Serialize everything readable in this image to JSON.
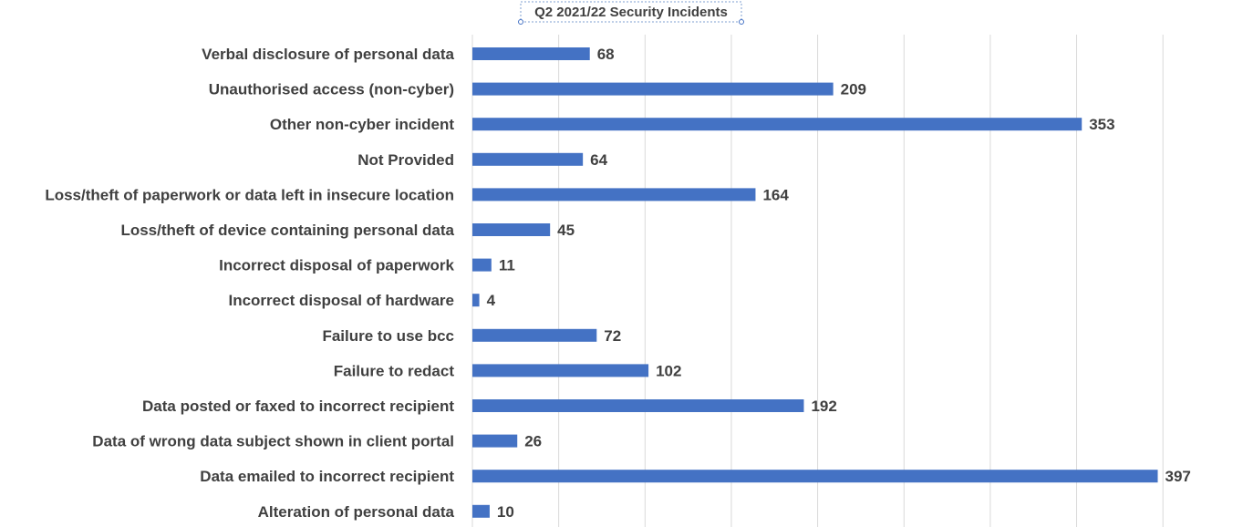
{
  "chart_data": {
    "type": "bar",
    "orientation": "horizontal",
    "title": "Q2 2021/22 Security Incidents",
    "xlabel": "",
    "ylabel": "",
    "xlim": [
      0,
      400
    ],
    "grid": true,
    "data_labels": true,
    "bar_color": "#4472C4",
    "categories": [
      "Verbal disclosure of personal data",
      "Unauthorised access (non-cyber)",
      "Other non-cyber incident",
      "Not Provided",
      "Loss/theft of paperwork or data left in insecure location",
      "Loss/theft of device containing personal data",
      "Incorrect disposal of paperwork",
      "Incorrect disposal of hardware",
      "Failure to use bcc",
      "Failure to redact",
      "Data posted or faxed to incorrect recipient",
      "Data of wrong data subject shown in client portal",
      "Data emailed to incorrect recipient",
      "Alteration of personal data"
    ],
    "values": [
      68,
      209,
      353,
      64,
      164,
      45,
      11,
      4,
      72,
      102,
      192,
      26,
      397,
      10
    ]
  }
}
